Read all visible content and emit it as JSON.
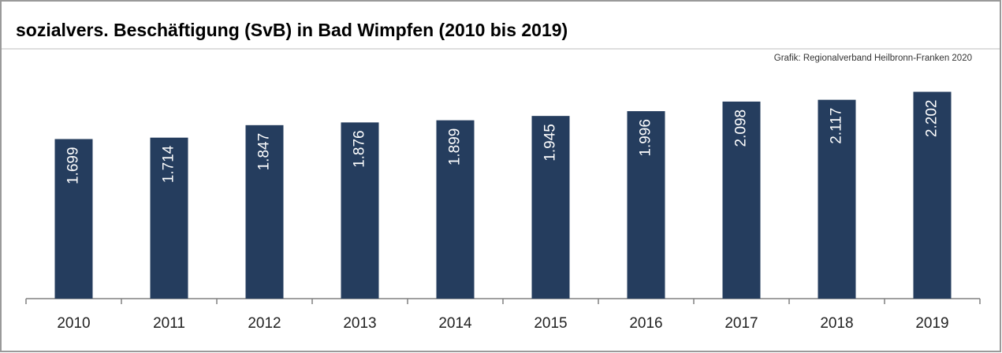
{
  "chart_data": {
    "type": "bar",
    "title": "sozialvers. Beschäftigung (SvB) in Bad Wimpfen (2010 bis 2019)",
    "source": "Grafik: Regionalverband Heilbronn-Franken 2020",
    "categories": [
      "2010",
      "2011",
      "2012",
      "2013",
      "2014",
      "2015",
      "2016",
      "2017",
      "2018",
      "2019"
    ],
    "values": [
      1699,
      1714,
      1847,
      1876,
      1899,
      1945,
      1996,
      2098,
      2117,
      2202
    ],
    "value_labels": [
      "1.699",
      "1.714",
      "1.847",
      "1.876",
      "1.899",
      "1.945",
      "1.996",
      "2.098",
      "2.117",
      "2.202"
    ],
    "color": "#253d5e",
    "ylim": [
      0,
      2500
    ]
  }
}
